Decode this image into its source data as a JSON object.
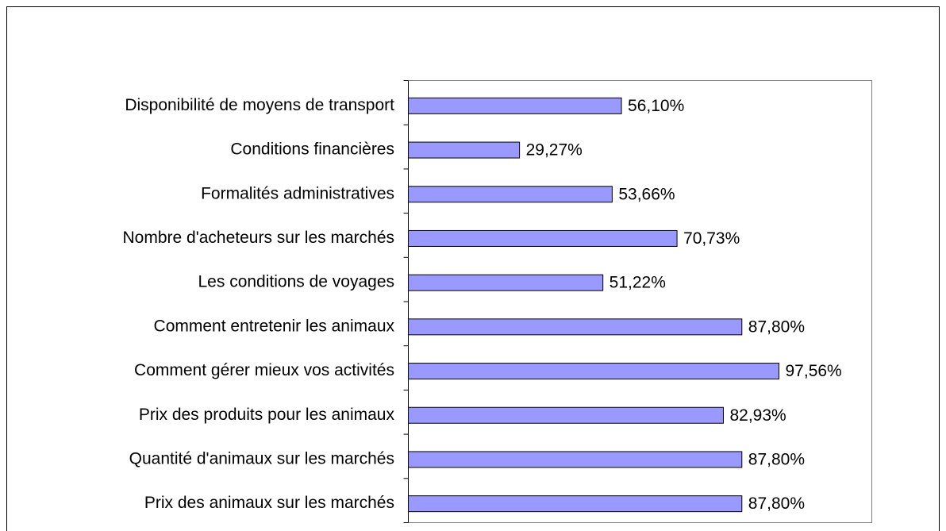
{
  "chart_data": {
    "type": "bar",
    "orientation": "horizontal",
    "categories": [
      "Disponibilité de moyens de transport",
      "Conditions financières",
      "Formalités administratives",
      "Nombre d'acheteurs sur les marchés",
      "Les conditions de voyages",
      "Comment entretenir les animaux",
      "Comment gérer mieux vos activités",
      "Prix des produits pour les animaux",
      "Quantité d'animaux sur les marchés",
      "Prix des animaux sur les marchés"
    ],
    "values": [
      56.1,
      29.27,
      53.66,
      70.73,
      51.22,
      87.8,
      97.56,
      82.93,
      87.8,
      87.8
    ],
    "value_labels": [
      "56,10%",
      "29,27%",
      "53,66%",
      "70,73%",
      "51,22%",
      "87,80%",
      "97,56%",
      "82,93%",
      "87,80%",
      "87,80%"
    ],
    "color": "#9999ff",
    "xlim": [
      0,
      122
    ]
  }
}
